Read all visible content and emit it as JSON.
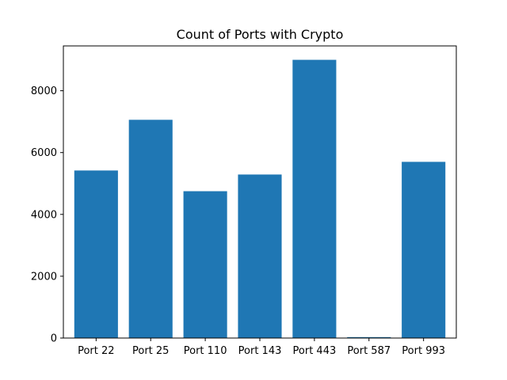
{
  "chart_data": {
    "type": "bar",
    "title": "Count of Ports with Crypto",
    "xlabel": "",
    "ylabel": "",
    "categories": [
      "Port 22",
      "Port 25",
      "Port 110",
      "Port 143",
      "Port 443",
      "Port 587",
      "Port 993"
    ],
    "values": [
      5420,
      7060,
      4750,
      5290,
      9000,
      30,
      5700
    ],
    "ylim": [
      0,
      9450
    ],
    "yticks": [
      0,
      2000,
      4000,
      6000,
      8000
    ],
    "ytick_labels": [
      "0",
      "2000",
      "4000",
      "6000",
      "8000"
    ],
    "grid": false,
    "legend": "none",
    "bar_color": "#1f77b4"
  }
}
